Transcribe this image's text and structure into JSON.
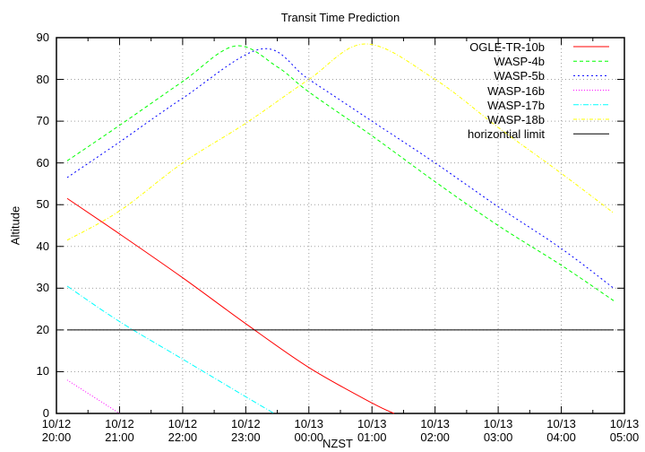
{
  "chart_data": {
    "type": "line",
    "title": "Transit Time Prediction",
    "xlabel": "NZST",
    "ylabel": "Altitude",
    "ylim": [
      0,
      90
    ],
    "yticks": [
      0,
      10,
      20,
      30,
      40,
      50,
      60,
      70,
      80,
      90
    ],
    "xticks": [
      {
        "date": "10/12",
        "time": "20:00"
      },
      {
        "date": "10/12",
        "time": "21:00"
      },
      {
        "date": "10/12",
        "time": "22:00"
      },
      {
        "date": "10/12",
        "time": "23:00"
      },
      {
        "date": "10/13",
        "time": "00:00"
      },
      {
        "date": "10/13",
        "time": "01:00"
      },
      {
        "date": "10/13",
        "time": "02:00"
      },
      {
        "date": "10/13",
        "time": "03:00"
      },
      {
        "date": "10/13",
        "time": "04:00"
      },
      {
        "date": "10/13",
        "time": "05:00"
      }
    ],
    "grid": true,
    "legend_position": "top-right",
    "x_unit": "hours after 10/12 20:00",
    "series": [
      {
        "name": "OGLE-TR-10b",
        "color": "#ff0000",
        "dash": "",
        "points": [
          [
            0.17,
            51.5
          ],
          [
            1,
            43
          ],
          [
            2,
            32.5
          ],
          [
            3,
            21.5
          ],
          [
            4,
            11
          ],
          [
            5,
            2.5
          ],
          [
            5.35,
            0
          ]
        ]
      },
      {
        "name": "WASP-4b",
        "color": "#00ff00",
        "dash": "4,3",
        "points": [
          [
            0.17,
            60.5
          ],
          [
            1,
            69
          ],
          [
            2,
            79.5
          ],
          [
            2.83,
            88
          ],
          [
            3.5,
            83
          ],
          [
            4,
            77
          ],
          [
            5,
            66.5
          ],
          [
            6,
            55.5
          ],
          [
            7,
            45
          ],
          [
            8,
            35.5
          ],
          [
            8.83,
            27
          ]
        ]
      },
      {
        "name": "WASP-5b",
        "color": "#0000ff",
        "dash": "2,3",
        "points": [
          [
            0.17,
            56.5
          ],
          [
            1,
            65
          ],
          [
            2,
            75.5
          ],
          [
            3.25,
            87.3
          ],
          [
            4,
            80
          ],
          [
            5,
            70
          ],
          [
            6,
            60
          ],
          [
            7,
            49.5
          ],
          [
            8,
            39.5
          ],
          [
            8.83,
            30
          ]
        ]
      },
      {
        "name": "WASP-16b",
        "color": "#ff00ff",
        "dash": "1,2",
        "points": [
          [
            0.17,
            8
          ],
          [
            1,
            0
          ]
        ]
      },
      {
        "name": "WASP-17b",
        "color": "#00ffff",
        "dash": "6,2,1,2",
        "points": [
          [
            0.17,
            30.5
          ],
          [
            1,
            22
          ],
          [
            2,
            13
          ],
          [
            3,
            4
          ],
          [
            3.45,
            0
          ]
        ]
      },
      {
        "name": "WASP-18b",
        "color": "#ffff00",
        "dash": "4,2,1,2",
        "points": [
          [
            0.17,
            41.5
          ],
          [
            1,
            48.5
          ],
          [
            2,
            60
          ],
          [
            3,
            69.5
          ],
          [
            4,
            80
          ],
          [
            4.9,
            88.5
          ],
          [
            6,
            80
          ],
          [
            7,
            68.5
          ],
          [
            8,
            57.5
          ],
          [
            8.83,
            48
          ]
        ]
      },
      {
        "name": "horizontial limit",
        "color": "#000000",
        "dash": "",
        "points": [
          [
            0.17,
            20
          ],
          [
            8.83,
            20
          ]
        ]
      }
    ]
  }
}
